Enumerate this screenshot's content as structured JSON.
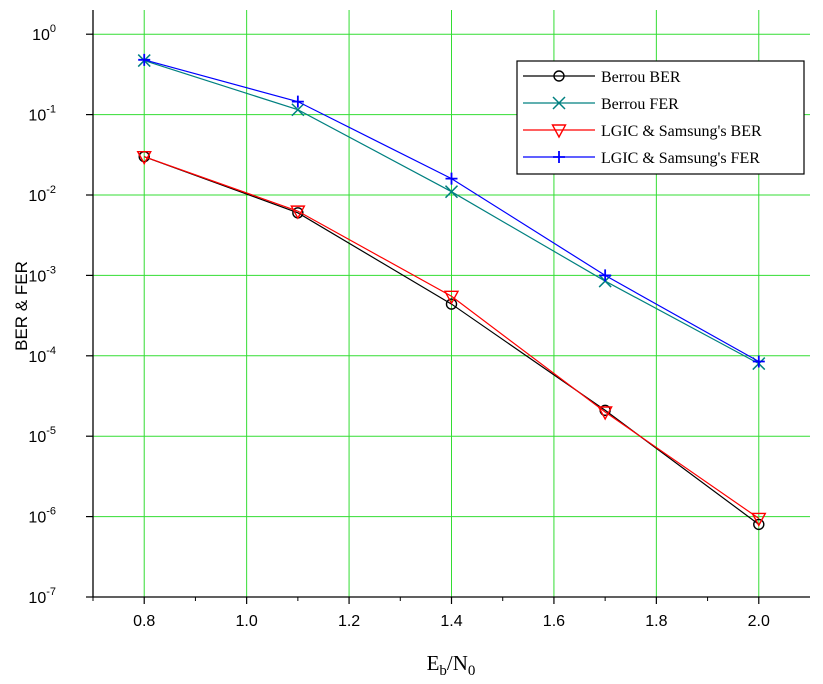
{
  "chart_data": {
    "type": "line",
    "x_axis": {
      "label_main": "E",
      "label_sub1": "b",
      "label_mid": "/N",
      "label_sub2": "0",
      "range": [
        0.7,
        2.1
      ],
      "ticks": [
        0.8,
        1.0,
        1.2,
        1.4,
        1.6,
        1.8,
        2.0
      ],
      "tick_labels": [
        "0.8",
        "1.0",
        "1.2",
        "1.4",
        "1.6",
        "1.8",
        "2.0"
      ]
    },
    "y_axis": {
      "label": "BER & FER",
      "scale": "log",
      "range": [
        1e-07,
        2
      ],
      "tick_base": "10",
      "tick_exponents": [
        "0",
        "-1",
        "-2",
        "-3",
        "-4",
        "-5",
        "-6",
        "-7"
      ]
    },
    "grid": true,
    "grid_color": "#33dd33",
    "legend_position": "top-right",
    "x": [
      0.8,
      1.1,
      1.4,
      1.7,
      2.0
    ],
    "series": [
      {
        "name": "Berrou BER",
        "color": "#000000",
        "marker": "circle",
        "values": [
          0.03,
          0.006,
          0.00044,
          2.1e-05,
          8e-07
        ]
      },
      {
        "name": "Berrou FER",
        "color": "#008080",
        "marker": "x",
        "values": [
          0.47,
          0.115,
          0.011,
          0.00085,
          8e-05
        ]
      },
      {
        "name": "LGIC & Samsung's BER",
        "color": "#ff0000",
        "marker": "triangle-down",
        "values": [
          0.03,
          0.0063,
          0.00055,
          2e-05,
          9.5e-07
        ]
      },
      {
        "name": "LGIC & Samsung's FER",
        "color": "#0000ff",
        "marker": "plus",
        "values": [
          0.48,
          0.145,
          0.016,
          0.001,
          8.5e-05
        ]
      }
    ]
  }
}
